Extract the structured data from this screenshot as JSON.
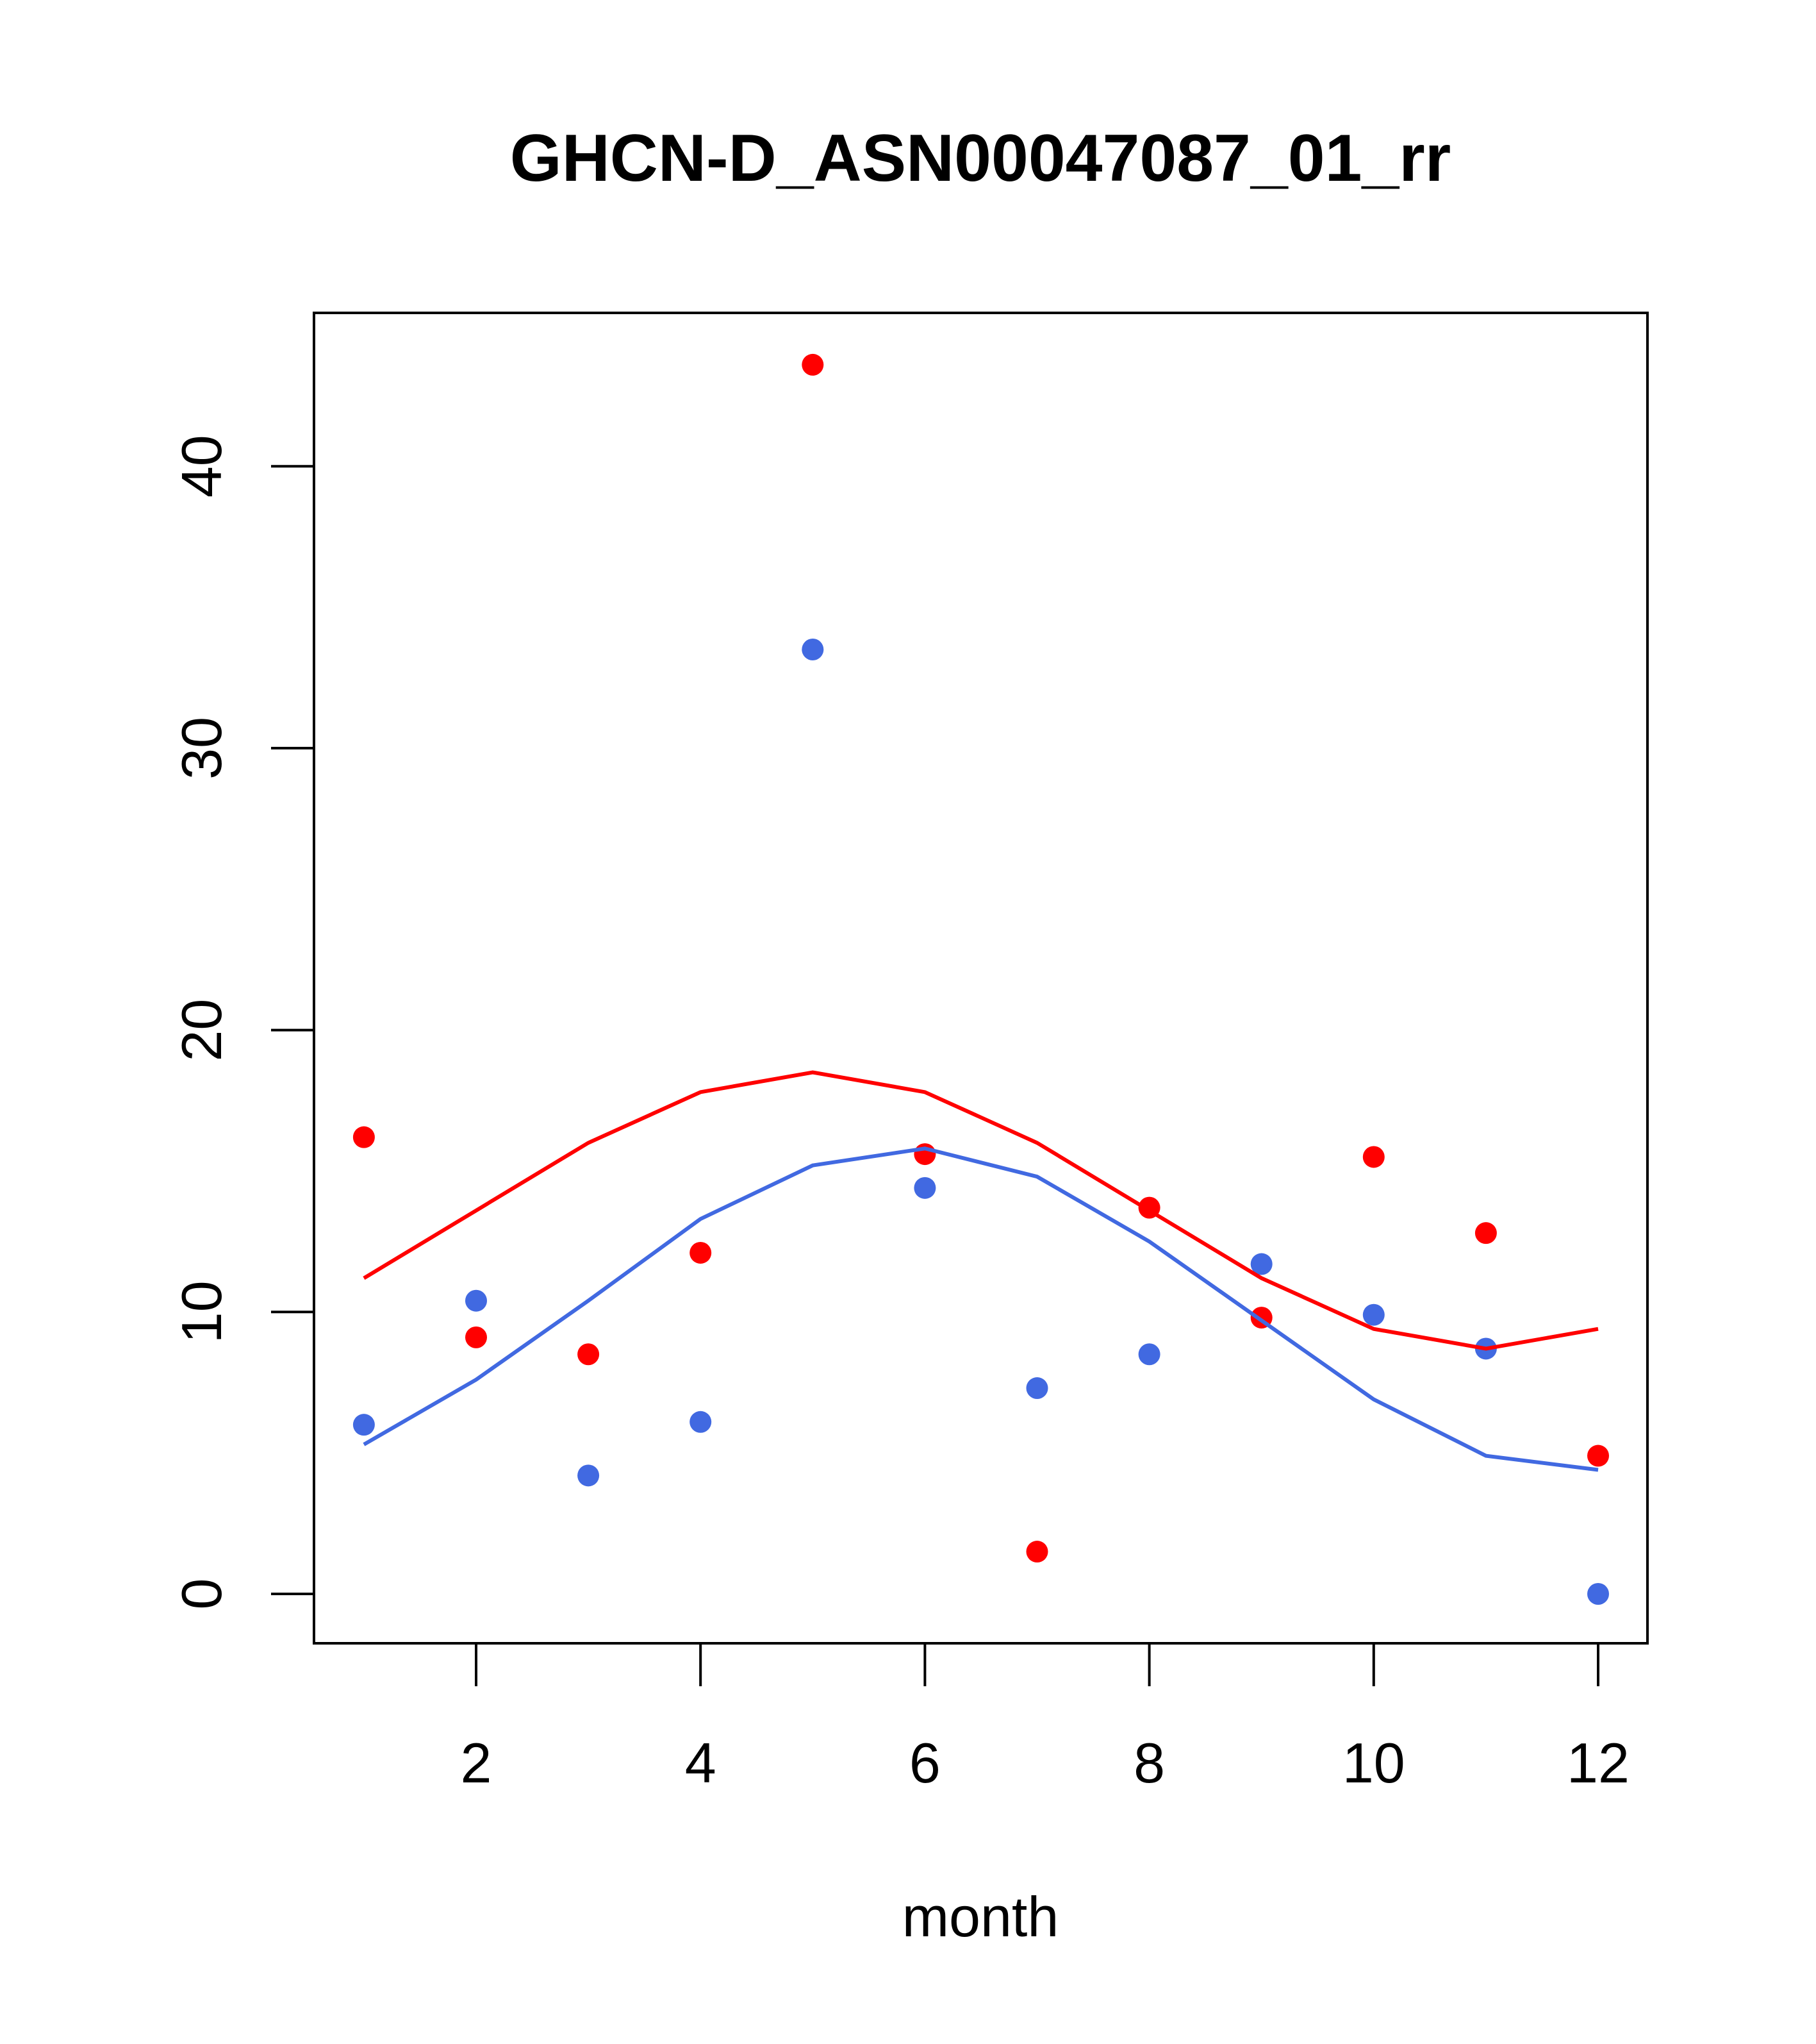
{
  "chart_data": {
    "type": "scatter",
    "title": "GHCN-D_ASN00047087_01_rr",
    "xlabel": "month",
    "ylabel": "",
    "xlim": [
      0.7,
      12.45
    ],
    "ylim": [
      -1.7,
      47.5
    ],
    "xticks": [
      2,
      4,
      6,
      8,
      10,
      12
    ],
    "yticks": [
      0,
      10,
      20,
      30,
      40
    ],
    "x": [
      1,
      2,
      3,
      4,
      5,
      6,
      7,
      8,
      9,
      10,
      11,
      12
    ],
    "series": [
      {
        "name": "red points",
        "kind": "points",
        "color": "#ff0000",
        "values": [
          16.2,
          9.1,
          8.5,
          12.1,
          43.6,
          15.6,
          1.5,
          13.7,
          9.8,
          15.5,
          12.8,
          4.9
        ]
      },
      {
        "name": "blue points",
        "kind": "points",
        "color": "#4169e1",
        "values": [
          6.0,
          10.4,
          4.2,
          6.1,
          33.5,
          14.4,
          7.3,
          8.5,
          11.7,
          9.9,
          8.7,
          0.0
        ]
      },
      {
        "name": "red line",
        "kind": "line",
        "color": "#ff0000",
        "values": [
          11.2,
          13.6,
          16.0,
          17.8,
          18.5,
          17.8,
          16.0,
          13.6,
          11.2,
          9.4,
          8.7,
          9.4
        ]
      },
      {
        "name": "blue line",
        "kind": "line",
        "color": "#4169e1",
        "values": [
          5.3,
          7.6,
          10.4,
          13.3,
          15.2,
          15.8,
          14.8,
          12.5,
          9.7,
          6.9,
          4.9,
          4.4
        ]
      }
    ],
    "grid": false,
    "legend": "none"
  }
}
